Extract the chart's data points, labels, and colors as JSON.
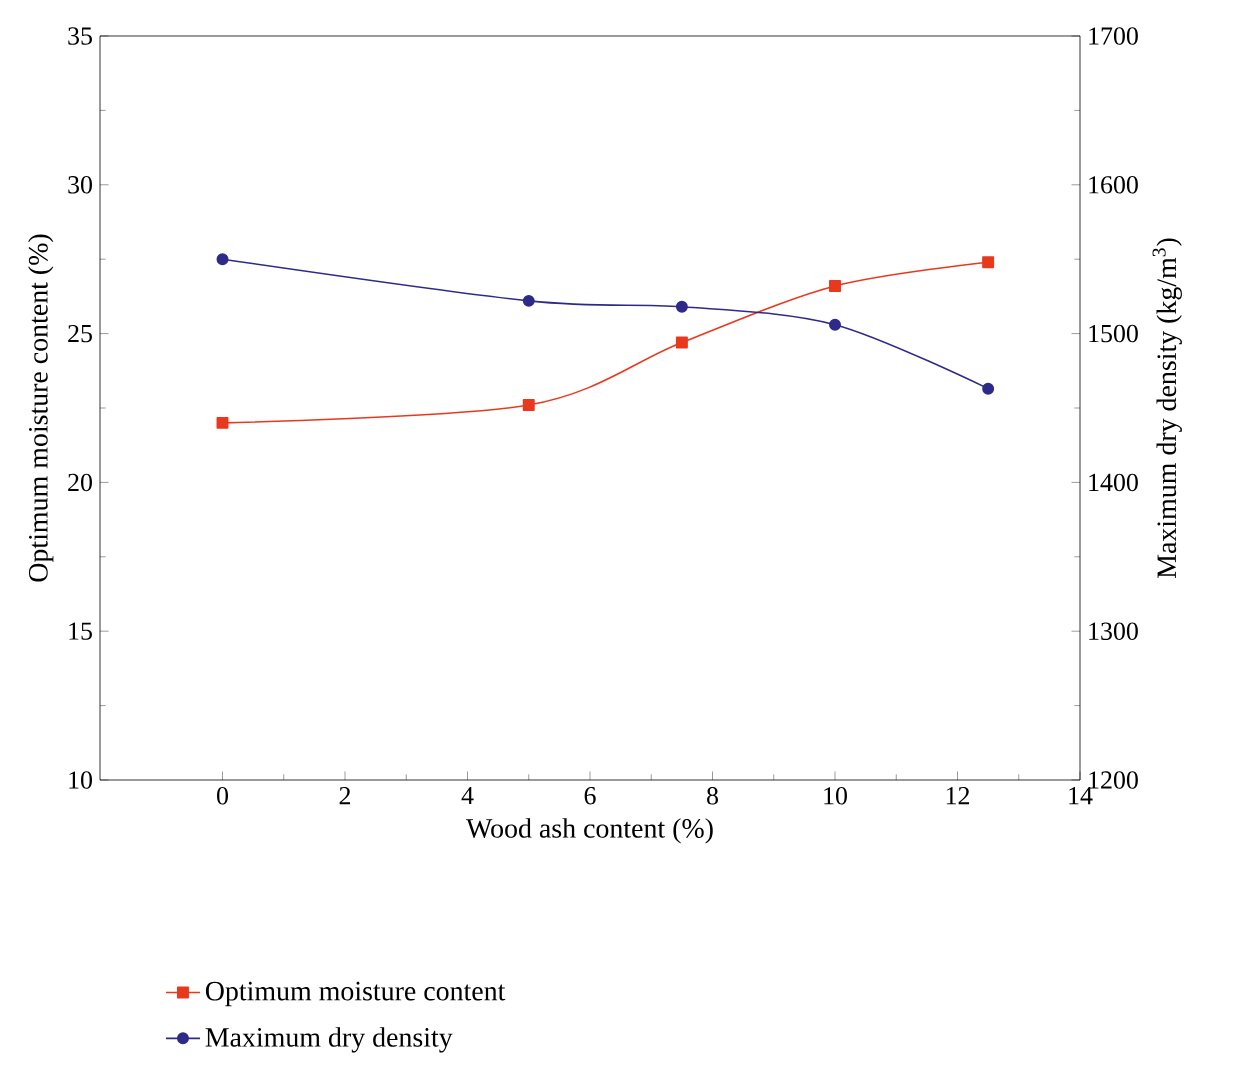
{
  "chart_data": {
    "type": "line",
    "xlabel": "Wood ash content (%)",
    "ylabel": "Optimum moisture content (%)",
    "y2label": "Maximum dry density (kg/m$^{3}$)",
    "x": [
      0,
      5,
      7.5,
      10,
      12.5
    ],
    "series": [
      {
        "name": "Optimum moisture content",
        "color": "#e8391e",
        "marker": "square",
        "values": [
          22.0,
          22.6,
          24.7,
          26.6,
          27.4
        ]
      },
      {
        "name": "Maximum dry density",
        "color": "#2e2a8a",
        "marker": "circle",
        "axis": "y2",
        "values": [
          1550,
          1522,
          1518,
          1506,
          1463
        ]
      }
    ],
    "xlim": [
      -2,
      14
    ],
    "xticks": [
      0,
      2,
      4,
      6,
      8,
      10,
      12,
      14
    ],
    "ylim": [
      10,
      35
    ],
    "yticks": [
      10,
      15,
      20,
      25,
      30,
      35
    ],
    "y2lim": [
      1200,
      1700
    ],
    "y2ticks": [
      1200,
      1300,
      1400,
      1500,
      1600,
      1700
    ],
    "legend": "bottom",
    "grid": false
  }
}
